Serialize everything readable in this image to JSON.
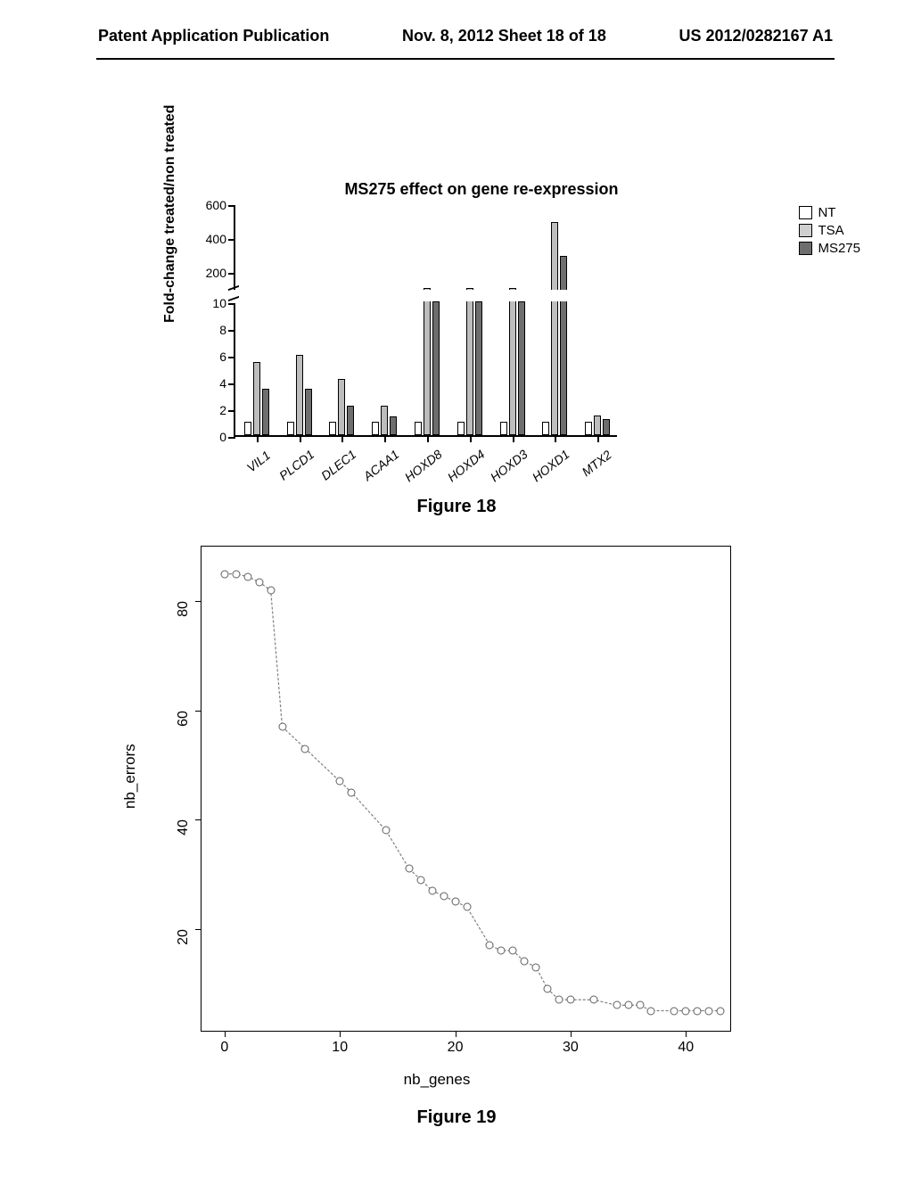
{
  "header": {
    "left": "Patent Application Publication",
    "center": "Nov. 8, 2012  Sheet 18 of 18",
    "right": "US 2012/0282167 A1"
  },
  "fig18": {
    "type": "bar",
    "title": "MS275 effect on gene re-expression",
    "ylabel": "Fold-change treated/non treated",
    "caption": "Figure 18",
    "legend": [
      {
        "label": "NT",
        "fill": "#ffffff"
      },
      {
        "label": "TSA",
        "fill": "#cfcfcf"
      },
      {
        "label": "MS275",
        "fill": "#6e6e6e"
      }
    ],
    "categories": [
      "VIL1",
      "PLCD1",
      "DLEC1",
      "ACAA1",
      "HOXD8",
      "HOXD4",
      "HOXD3",
      "HOXD1",
      "MTX2"
    ],
    "series": {
      "NT": [
        1,
        1,
        1,
        1,
        1,
        1,
        1,
        1,
        1
      ],
      "TSA": [
        5.5,
        6,
        4.2,
        2.2,
        45,
        45,
        60,
        500,
        1.5
      ],
      "MS275": [
        3.5,
        3.5,
        2.2,
        1.4,
        10,
        10,
        10,
        300,
        1.2
      ]
    },
    "upper": {
      "min": 100,
      "max": 600,
      "ticks": [
        200,
        400,
        600
      ]
    },
    "lower": {
      "min": 0,
      "max": 10,
      "ticks": [
        0,
        2,
        4,
        6,
        8,
        10
      ]
    },
    "colors": {
      "NT": "#ffffff",
      "TSA": "#bdbdbd",
      "MS275": "#6e6e6e"
    },
    "title_fontsize": 18,
    "label_fontsize": 16
  },
  "fig19": {
    "type": "line",
    "caption": "Figure 19",
    "xlabel": "nb_genes",
    "ylabel": "nb_errors",
    "xlim": [
      -2,
      44
    ],
    "ylim": [
      1,
      90
    ],
    "xticks": [
      0,
      10,
      20,
      30,
      40
    ],
    "yticks": [
      20,
      40,
      60,
      80
    ],
    "points": [
      {
        "x": 0,
        "y": 85
      },
      {
        "x": 1,
        "y": 85
      },
      {
        "x": 2,
        "y": 84.5
      },
      {
        "x": 3,
        "y": 83.5
      },
      {
        "x": 4,
        "y": 82
      },
      {
        "x": 5,
        "y": 57
      },
      {
        "x": 7,
        "y": 53
      },
      {
        "x": 10,
        "y": 47
      },
      {
        "x": 11,
        "y": 45
      },
      {
        "x": 14,
        "y": 38
      },
      {
        "x": 16,
        "y": 31
      },
      {
        "x": 17,
        "y": 29
      },
      {
        "x": 18,
        "y": 27
      },
      {
        "x": 19,
        "y": 26
      },
      {
        "x": 20,
        "y": 25
      },
      {
        "x": 21,
        "y": 24
      },
      {
        "x": 23,
        "y": 17
      },
      {
        "x": 24,
        "y": 16
      },
      {
        "x": 25,
        "y": 16
      },
      {
        "x": 26,
        "y": 14
      },
      {
        "x": 27,
        "y": 13
      },
      {
        "x": 28,
        "y": 9
      },
      {
        "x": 29,
        "y": 7
      },
      {
        "x": 30,
        "y": 7
      },
      {
        "x": 32,
        "y": 7
      },
      {
        "x": 34,
        "y": 6
      },
      {
        "x": 35,
        "y": 6
      },
      {
        "x": 36,
        "y": 6
      },
      {
        "x": 37,
        "y": 5
      },
      {
        "x": 39,
        "y": 5
      },
      {
        "x": 40,
        "y": 5
      },
      {
        "x": 41,
        "y": 5
      },
      {
        "x": 42,
        "y": 5
      },
      {
        "x": 43,
        "y": 5
      }
    ],
    "marker_color": "#606060",
    "line_color": "#808080"
  }
}
